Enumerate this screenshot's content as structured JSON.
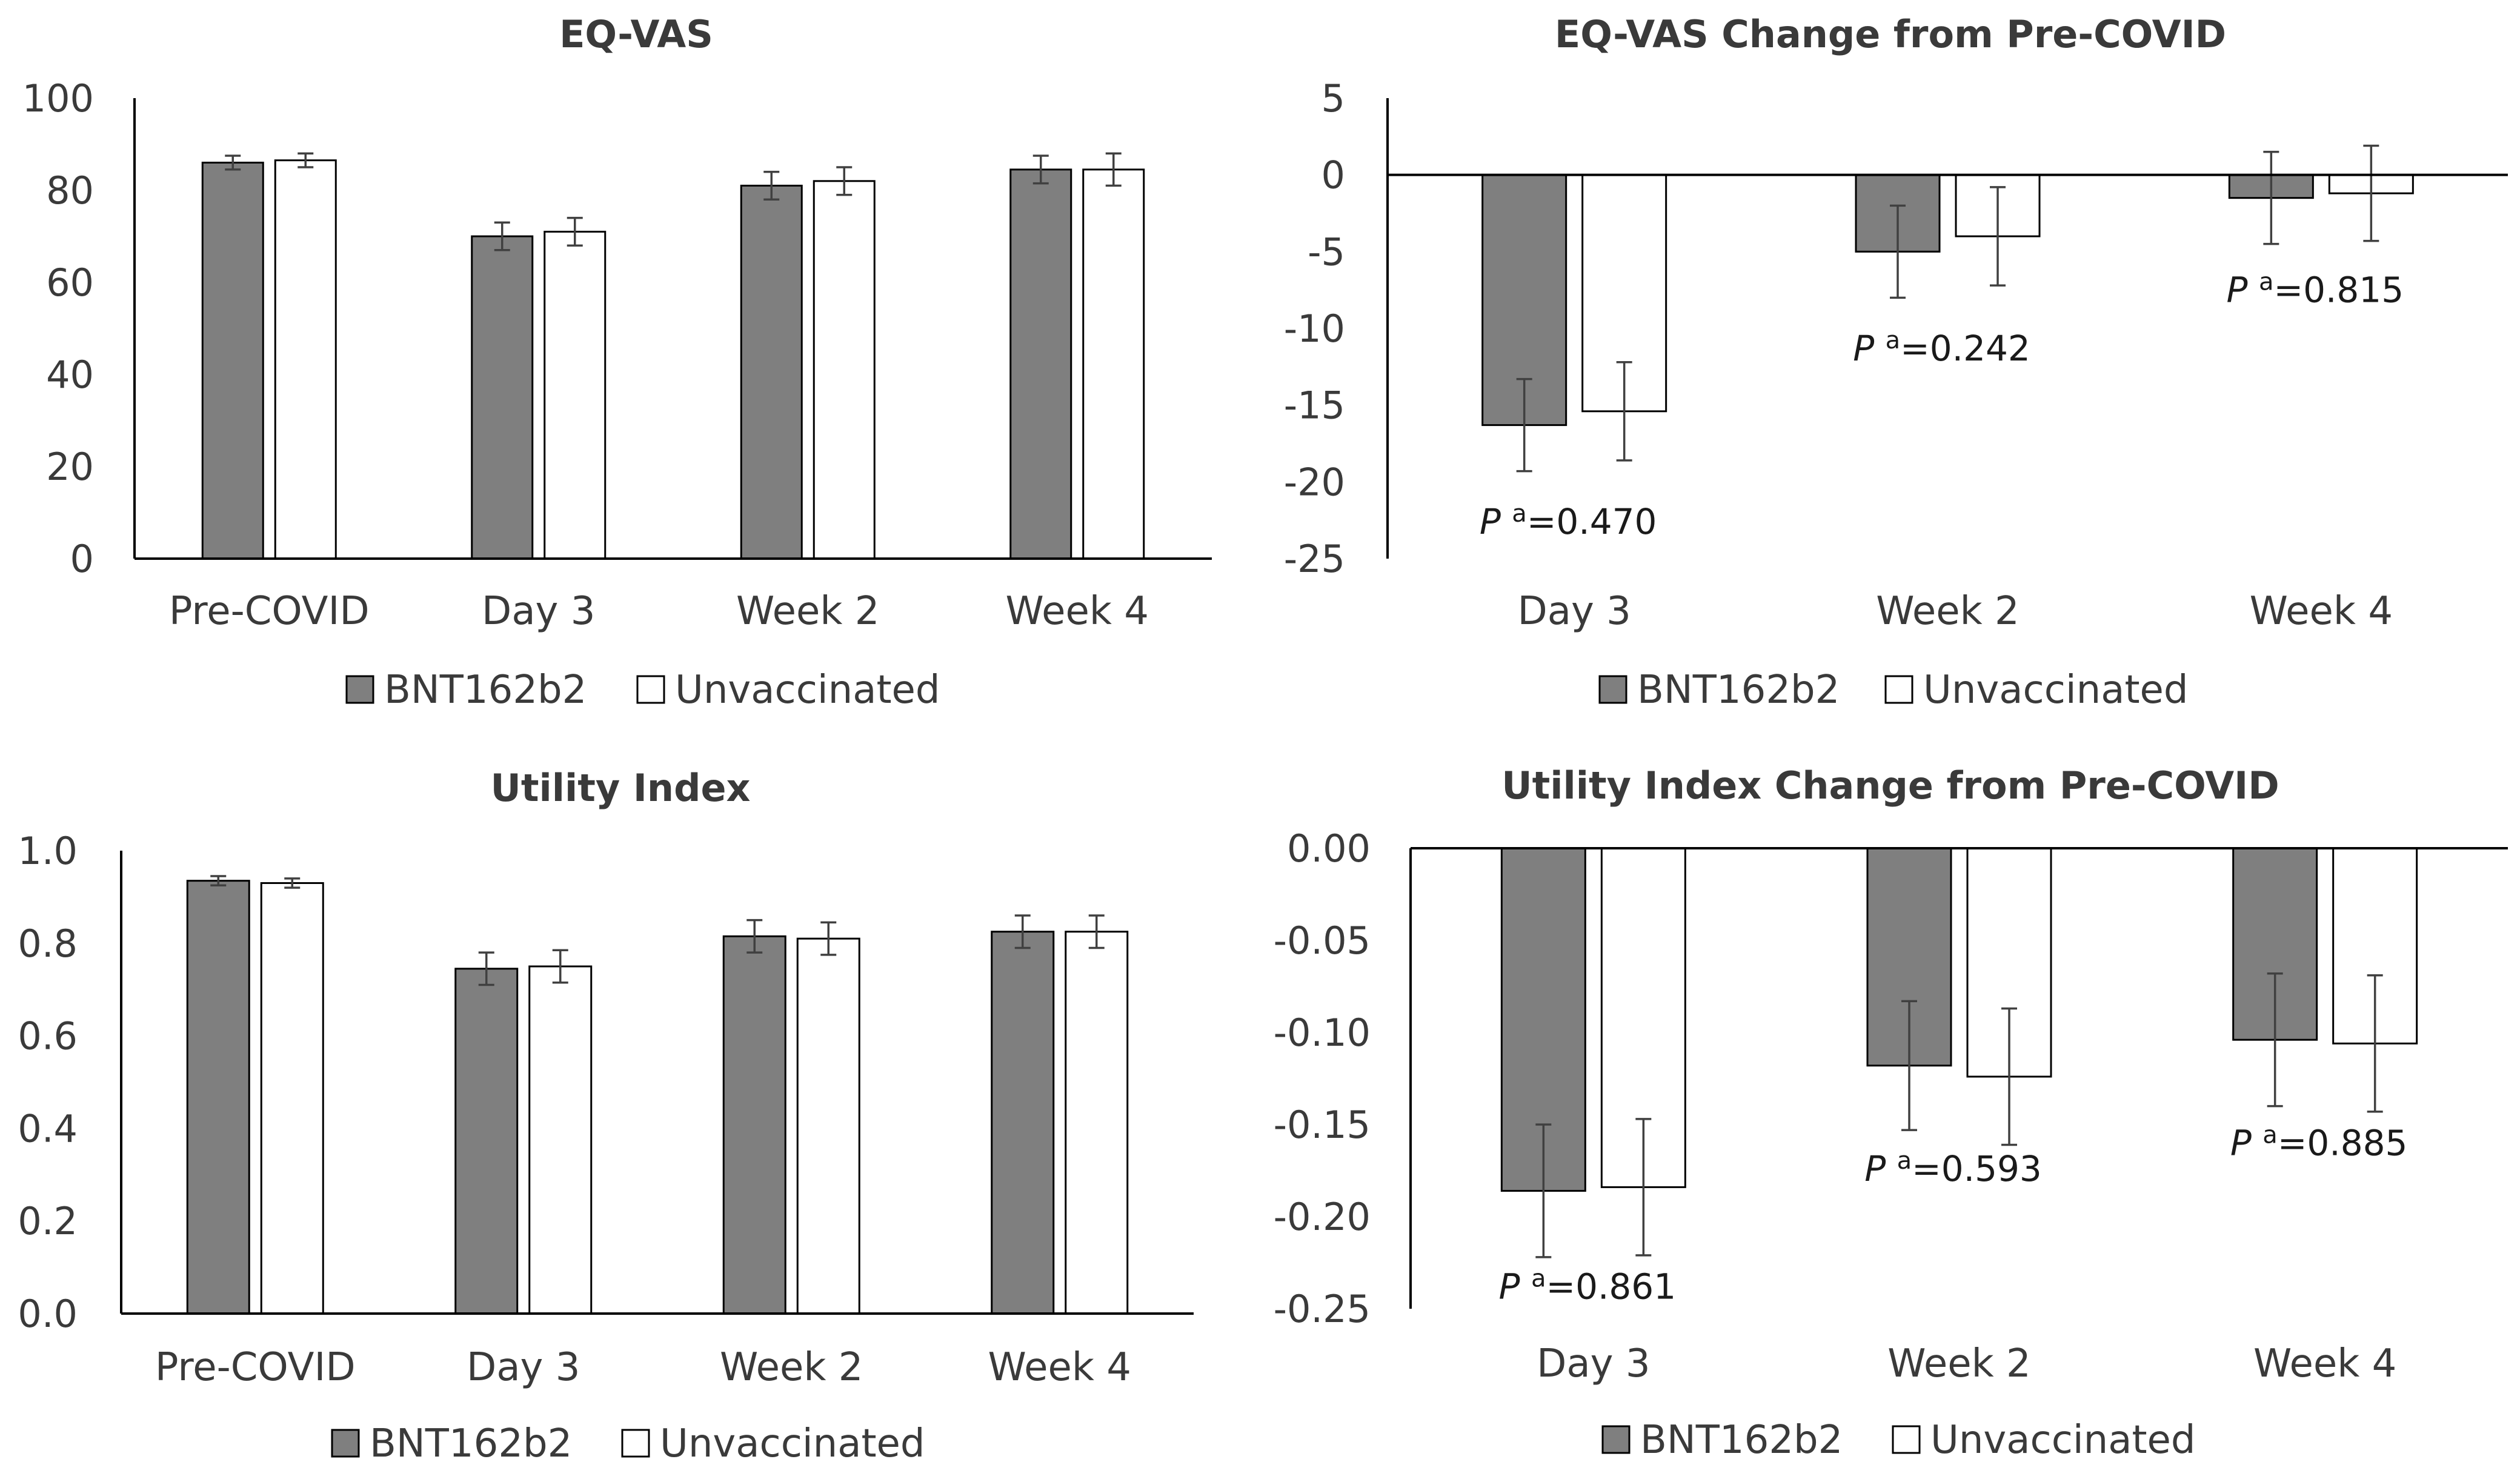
{
  "colors": {
    "bnt": "#7f7f7f",
    "unvax": "#ffffff",
    "axis": "#000000",
    "text": "#3a3a3a",
    "edge": "#000000"
  },
  "legend": {
    "bnt_label": "BNT162b2",
    "unvax_label": "Unvaccinated"
  },
  "chart_data": [
    {
      "id": "eqvas",
      "type": "bar",
      "title": "EQ-VAS",
      "categories": [
        "Pre-COVID",
        "Day 3",
        "Week 2",
        "Week 4"
      ],
      "ylim": [
        0,
        100
      ],
      "yticks": [
        0,
        20,
        40,
        60,
        80,
        100
      ],
      "ytick_labels": [
        "0",
        "20",
        "40",
        "60",
        "80",
        "100"
      ],
      "series": [
        {
          "name": "BNT162b2",
          "values": [
            86,
            70,
            81,
            84.5
          ],
          "err_low": [
            1.5,
            3,
            3,
            3
          ],
          "err_high": [
            1.5,
            3,
            3,
            3
          ]
        },
        {
          "name": "Unvaccinated",
          "values": [
            86.5,
            71,
            82,
            84.5
          ],
          "err_low": [
            1.5,
            3,
            3,
            3.5
          ],
          "err_high": [
            1.5,
            3,
            3,
            3.5
          ]
        }
      ],
      "annotations": []
    },
    {
      "id": "eqvas_change",
      "type": "bar",
      "title": "EQ-VAS Change from Pre-COVID",
      "categories": [
        "Day 3",
        "Week 2",
        "Week 4"
      ],
      "ylim": [
        -25,
        5
      ],
      "yticks": [
        -25,
        -20,
        -15,
        -10,
        -5,
        0,
        5
      ],
      "ytick_labels": [
        "-25",
        "-20",
        "-15",
        "-10",
        "-5",
        "0",
        "5"
      ],
      "series": [
        {
          "name": "BNT162b2",
          "values": [
            -16.3,
            -5,
            -1.5
          ],
          "err_low": [
            3,
            3,
            3
          ],
          "err_high": [
            3,
            3,
            3
          ]
        },
        {
          "name": "Unvaccinated",
          "values": [
            -15.4,
            -4,
            -1.2
          ],
          "err_low": [
            3.2,
            3.2,
            3.1
          ],
          "err_high": [
            3.2,
            3.2,
            3.1
          ]
        }
      ],
      "annotations": [
        {
          "category": "Day 3",
          "prefix": "P",
          "sup": "a",
          "text": "=0.470",
          "y": -22.6
        },
        {
          "category": "Week 2",
          "prefix": "P",
          "sup": "a",
          "text": "=0.242",
          "y": -11.3
        },
        {
          "category": "Week 4",
          "prefix": "P",
          "sup": "a",
          "text": "=0.815",
          "y": -7.5
        }
      ]
    },
    {
      "id": "utility",
      "type": "bar",
      "title": "Utility Index",
      "categories": [
        "Pre-COVID",
        "Day 3",
        "Week 2",
        "Week 4"
      ],
      "ylim": [
        0,
        1
      ],
      "yticks": [
        0,
        0.2,
        0.4,
        0.6,
        0.8,
        1.0
      ],
      "ytick_labels": [
        "0.0",
        "0.2",
        "0.4",
        "0.6",
        "0.8",
        "1.0"
      ],
      "series": [
        {
          "name": "BNT162b2",
          "values": [
            0.935,
            0.745,
            0.815,
            0.825
          ],
          "err_low": [
            0.01,
            0.035,
            0.035,
            0.035
          ],
          "err_high": [
            0.01,
            0.035,
            0.035,
            0.035
          ]
        },
        {
          "name": "Unvaccinated",
          "values": [
            0.93,
            0.75,
            0.81,
            0.825
          ],
          "err_low": [
            0.01,
            0.035,
            0.035,
            0.035
          ],
          "err_high": [
            0.01,
            0.035,
            0.035,
            0.035
          ]
        }
      ],
      "annotations": []
    },
    {
      "id": "utility_change",
      "type": "bar",
      "title": "Utility Index Change from Pre-COVID",
      "categories": [
        "Day 3",
        "Week 2",
        "Week 4"
      ],
      "ylim": [
        -0.25,
        0
      ],
      "yticks": [
        -0.25,
        -0.2,
        -0.15,
        -0.1,
        -0.05,
        0
      ],
      "ytick_labels": [
        "-0.25",
        "-0.20",
        "-0.15",
        "-0.10",
        "-0.05",
        "0.00"
      ],
      "series": [
        {
          "name": "BNT162b2",
          "values": [
            -0.186,
            -0.118,
            -0.104
          ],
          "err_low": [
            0.036,
            0.035,
            0.036
          ],
          "err_high": [
            0.036,
            0.035,
            0.036
          ]
        },
        {
          "name": "Unvaccinated",
          "values": [
            -0.184,
            -0.124,
            -0.106
          ],
          "err_low": [
            0.037,
            0.037,
            0.037
          ],
          "err_high": [
            0.037,
            0.037,
            0.037
          ]
        }
      ],
      "annotations": [
        {
          "category": "Day 3",
          "prefix": "P",
          "sup": "a",
          "text": "=0.861",
          "y": -0.238
        },
        {
          "category": "Week 2",
          "prefix": "P",
          "sup": "a",
          "text": "=0.593",
          "y": -0.174
        },
        {
          "category": "Week 4",
          "prefix": "P",
          "sup": "a",
          "text": "=0.885",
          "y": -0.16
        }
      ]
    }
  ]
}
